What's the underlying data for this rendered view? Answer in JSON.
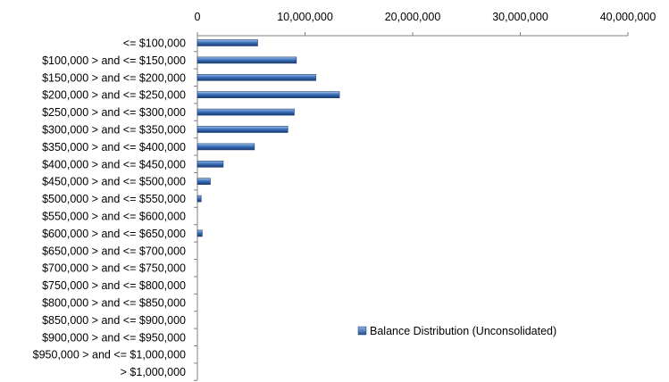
{
  "chart_data": {
    "type": "bar",
    "orientation": "horizontal",
    "title": "",
    "xlabel": "",
    "ylabel": "",
    "x_axis_position": "top",
    "xlim": [
      0,
      40000000
    ],
    "x_ticks": [
      0,
      10000000,
      20000000,
      30000000,
      40000000
    ],
    "x_tick_labels": [
      "0",
      "10,000,000",
      "20,000,000",
      "30,000,000",
      "40,000,000"
    ],
    "grid": false,
    "legend_position": "bottom-right",
    "categories": [
      "<= $100,000",
      "$100,000 > and <= $150,000",
      "$150,000 > and <= $200,000",
      "$200,000 > and <= $250,000",
      "$250,000 > and <= $300,000",
      "$300,000 > and <= $350,000",
      "$350,000 > and <= $400,000",
      "$400,000 > and <= $450,000",
      "$450,000 > and <= $500,000",
      "$500,000 > and <= $550,000",
      "$550,000 > and <= $600,000",
      "$600,000 > and <= $650,000",
      "$650,000 > and <= $700,000",
      "$700,000 > and <= $750,000",
      "$750,000 > and <= $800,000",
      "$800,000 > and <= $850,000",
      "$850,000 > and <= $900,000",
      "$900,000 > and <= $950,000",
      "$950,000 > and <= $1,000,000",
      "> $1,000,000"
    ],
    "series": [
      {
        "name": "Balance Distribution (Unconsolidated)",
        "color": "#3b6fb6",
        "values": [
          5600000,
          9200000,
          11000000,
          13200000,
          9000000,
          8400000,
          5300000,
          2400000,
          1200000,
          350000,
          0,
          450000,
          0,
          0,
          0,
          0,
          0,
          0,
          0,
          0
        ]
      }
    ]
  }
}
